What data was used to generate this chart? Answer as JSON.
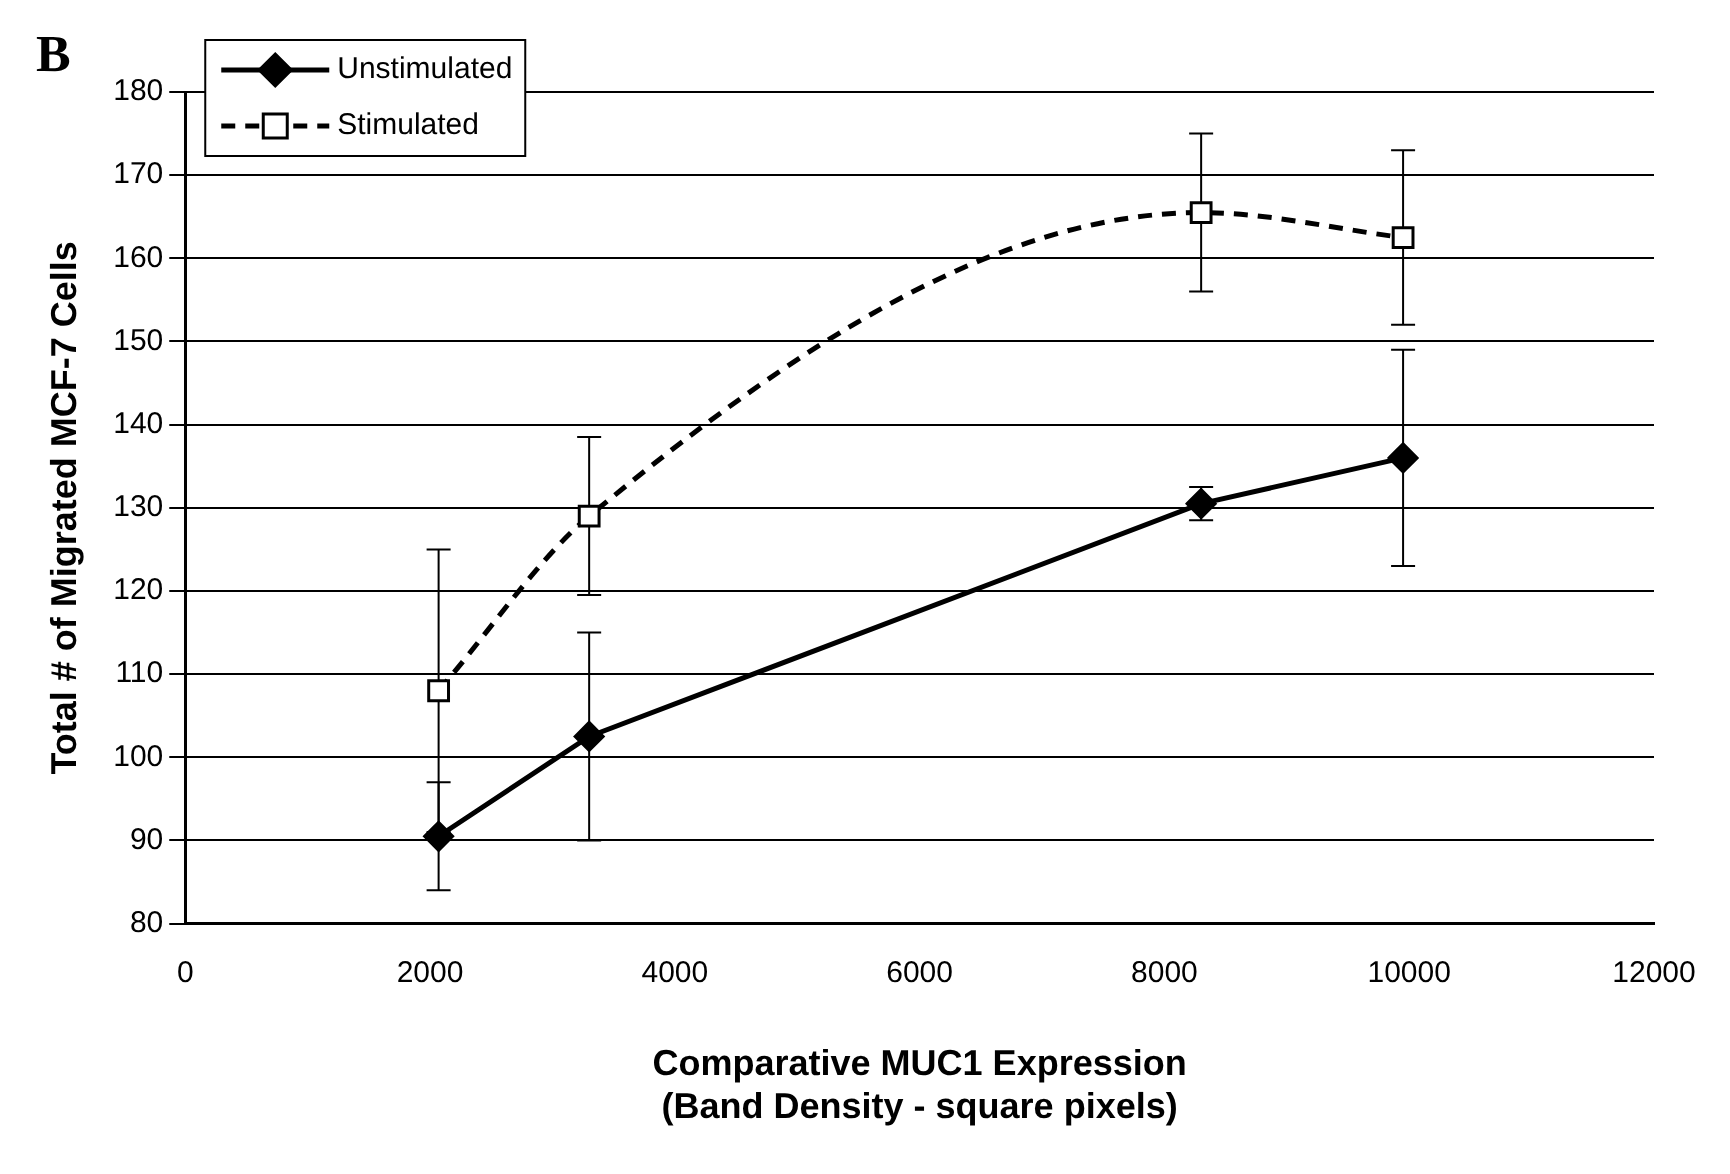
{
  "chart_data": {
    "type": "line",
    "xlabel": "Comparative MUC1 Expression\n(Band Density - square pixels)",
    "ylabel": "Total # of Migrated MCF-7 Cells",
    "annotations": [
      "B"
    ],
    "xlim": [
      0,
      12000
    ],
    "xticks": [
      0,
      2000,
      4000,
      6000,
      8000,
      10000,
      12000
    ],
    "ylim": [
      80,
      180
    ],
    "yticks": [
      80,
      90,
      100,
      110,
      120,
      130,
      140,
      150,
      160,
      170,
      180
    ],
    "grid": "y",
    "legend": "top left",
    "series": [
      {
        "name": "Unstimulated",
        "color": "#000000",
        "marker": "diamond",
        "line_style": "solid",
        "x": [
          2070,
          3300,
          8300,
          9950
        ],
        "values": [
          90.5,
          102.5,
          130.5,
          136
        ],
        "errors": [
          6.5,
          12.5,
          2,
          13
        ]
      },
      {
        "name": "Stimulated",
        "color": "#000000",
        "marker": "square",
        "line_style": "dashed",
        "x": [
          2070,
          3300,
          8300,
          9950
        ],
        "values": [
          108,
          129,
          165.5,
          162.5
        ],
        "errors": [
          17,
          9.5,
          9.5,
          10.5
        ]
      }
    ]
  }
}
